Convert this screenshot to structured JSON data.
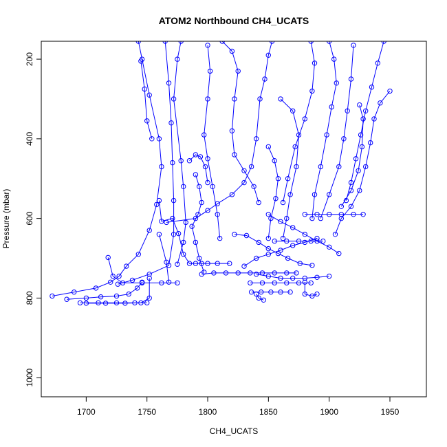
{
  "chart_data": {
    "type": "line",
    "title": "ATOM2 Northbound CH4_UCATS",
    "xlabel": "CH4_UCATS",
    "ylabel": "Pressure (mbar)",
    "xlim": [
      1663,
      1980
    ],
    "ylim": [
      1048,
      155
    ],
    "y_inverted": true,
    "x_ticks": [
      1700,
      1750,
      1800,
      1850,
      1900,
      1950
    ],
    "y_ticks": [
      200,
      400,
      600,
      800,
      1000
    ],
    "grid": false,
    "marker": "open-circle",
    "line_color": "#0000ff",
    "series": [
      {
        "points": [
          [
            1672,
            795
          ],
          [
            1690,
            785
          ],
          [
            1708,
            775
          ],
          [
            1720,
            760
          ],
          [
            1727,
            745
          ],
          [
            1733,
            720
          ],
          [
            1743,
            690
          ],
          [
            1752,
            630
          ],
          [
            1758,
            565
          ],
          [
            1762,
            470
          ],
          [
            1760,
            400
          ],
          [
            1752,
            290
          ],
          [
            1746,
            200
          ],
          [
            1743,
            155
          ]
        ]
      },
      {
        "points": [
          [
            1700,
            813
          ],
          [
            1716,
            813
          ],
          [
            1732,
            813
          ],
          [
            1745,
            812
          ],
          [
            1752,
            800
          ],
          [
            1752,
            750
          ]
        ]
      },
      {
        "points": [
          [
            1684,
            803
          ],
          [
            1700,
            800
          ],
          [
            1712,
            797
          ],
          [
            1725,
            795
          ],
          [
            1735,
            790
          ],
          [
            1742,
            775
          ],
          [
            1746,
            760
          ]
        ]
      },
      {
        "points": [
          [
            1695,
            812
          ],
          [
            1710,
            812
          ],
          [
            1725,
            812
          ],
          [
            1740,
            812
          ],
          [
            1750,
            812
          ]
        ]
      },
      {
        "points": [
          [
            1718,
            698
          ],
          [
            1722,
            745
          ],
          [
            1730,
            762
          ],
          [
            1746,
            762
          ],
          [
            1762,
            762
          ],
          [
            1775,
            762
          ]
        ]
      },
      {
        "points": [
          [
            1745,
            205
          ],
          [
            1748,
            275
          ],
          [
            1750,
            355
          ],
          [
            1754,
            400
          ]
        ]
      },
      {
        "points": [
          [
            1726,
            765
          ],
          [
            1738,
            755
          ],
          [
            1752,
            740
          ],
          [
            1768,
            718
          ],
          [
            1772,
            640
          ],
          [
            1772,
            555
          ],
          [
            1771,
            460
          ],
          [
            1770,
            360
          ],
          [
            1768,
            260
          ],
          [
            1765,
            155
          ]
        ]
      },
      {
        "points": [
          [
            1760,
            555
          ],
          [
            1762,
            607
          ],
          [
            1771,
            600
          ],
          [
            1776,
            638
          ],
          [
            1780,
            690
          ],
          [
            1785,
            713
          ],
          [
            1790,
            713
          ],
          [
            1795,
            713
          ],
          [
            1800,
            713
          ],
          [
            1808,
            713
          ],
          [
            1818,
            713
          ]
        ]
      },
      {
        "points": [
          [
            1775,
            715
          ],
          [
            1780,
            660
          ],
          [
            1782,
            610
          ],
          [
            1780,
            520
          ],
          [
            1778,
            455
          ],
          [
            1772,
            300
          ],
          [
            1775,
            200
          ],
          [
            1778,
            155
          ]
        ]
      },
      {
        "points": [
          [
            1766,
            610
          ],
          [
            1790,
            600
          ],
          [
            1800,
            580
          ],
          [
            1808,
            563
          ],
          [
            1820,
            540
          ],
          [
            1830,
            510
          ],
          [
            1836,
            470
          ],
          [
            1840,
            400
          ],
          [
            1843,
            300
          ],
          [
            1847,
            250
          ],
          [
            1850,
            190
          ],
          [
            1853,
            155
          ]
        ]
      },
      {
        "points": [
          [
            1790,
            490
          ],
          [
            1793,
            520
          ],
          [
            1795,
            560
          ],
          [
            1792,
            590
          ],
          [
            1787,
            620
          ],
          [
            1790,
            660
          ],
          [
            1793,
            700
          ],
          [
            1797,
            735
          ]
        ]
      },
      {
        "points": [
          [
            1795,
            740
          ],
          [
            1805,
            737
          ],
          [
            1815,
            737
          ],
          [
            1825,
            737
          ],
          [
            1835,
            737
          ],
          [
            1845,
            737
          ],
          [
            1855,
            737
          ],
          [
            1865,
            737
          ],
          [
            1873,
            737
          ]
        ]
      },
      {
        "points": [
          [
            1800,
            165
          ],
          [
            1802,
            230
          ],
          [
            1800,
            300
          ],
          [
            1797,
            390
          ],
          [
            1800,
            450
          ],
          [
            1804,
            520
          ],
          [
            1808,
            590
          ],
          [
            1810,
            650
          ]
        ]
      },
      {
        "points": [
          [
            1812,
            155
          ],
          [
            1820,
            180
          ],
          [
            1825,
            230
          ],
          [
            1822,
            300
          ],
          [
            1820,
            380
          ],
          [
            1822,
            440
          ],
          [
            1830,
            480
          ],
          [
            1838,
            520
          ],
          [
            1842,
            560
          ]
        ]
      },
      {
        "points": [
          [
            1822,
            640
          ],
          [
            1832,
            643
          ],
          [
            1842,
            660
          ],
          [
            1850,
            676
          ],
          [
            1858,
            688
          ],
          [
            1866,
            700
          ],
          [
            1876,
            713
          ],
          [
            1886,
            718
          ]
        ]
      },
      {
        "points": [
          [
            1840,
            740
          ],
          [
            1850,
            745
          ],
          [
            1860,
            750
          ],
          [
            1870,
            750
          ],
          [
            1880,
            750
          ],
          [
            1890,
            748
          ],
          [
            1900,
            745
          ]
        ]
      },
      {
        "points": [
          [
            1835,
            762
          ],
          [
            1845,
            762
          ],
          [
            1855,
            762
          ],
          [
            1865,
            762
          ],
          [
            1875,
            762
          ],
          [
            1885,
            762
          ]
        ]
      },
      {
        "points": [
          [
            1836,
            785
          ],
          [
            1844,
            785
          ],
          [
            1852,
            785
          ],
          [
            1860,
            785
          ],
          [
            1868,
            785
          ]
        ]
      },
      {
        "points": [
          [
            1840,
            790
          ],
          [
            1842,
            800
          ],
          [
            1846,
            805
          ]
        ]
      },
      {
        "points": [
          [
            1850,
            590
          ],
          [
            1860,
            608
          ],
          [
            1870,
            623
          ],
          [
            1880,
            640
          ],
          [
            1890,
            657
          ],
          [
            1900,
            672
          ],
          [
            1908,
            688
          ]
        ]
      },
      {
        "points": [
          [
            1855,
            657
          ],
          [
            1865,
            657
          ],
          [
            1875,
            657
          ],
          [
            1885,
            657
          ],
          [
            1895,
            657
          ]
        ]
      },
      {
        "points": [
          [
            1880,
            590
          ],
          [
            1890,
            590
          ],
          [
            1900,
            590
          ],
          [
            1910,
            590
          ],
          [
            1920,
            590
          ],
          [
            1928,
            590
          ]
        ]
      },
      {
        "points": [
          [
            1860,
            300
          ],
          [
            1870,
            330
          ],
          [
            1875,
            390
          ],
          [
            1873,
            470
          ],
          [
            1868,
            540
          ],
          [
            1865,
            600
          ],
          [
            1862,
            650
          ]
        ]
      },
      {
        "points": [
          [
            1885,
            155
          ],
          [
            1888,
            210
          ],
          [
            1886,
            280
          ],
          [
            1880,
            350
          ],
          [
            1872,
            420
          ],
          [
            1866,
            500
          ],
          [
            1862,
            560
          ]
        ]
      },
      {
        "points": [
          [
            1900,
            155
          ],
          [
            1904,
            200
          ],
          [
            1906,
            260
          ],
          [
            1902,
            320
          ],
          [
            1898,
            390
          ],
          [
            1893,
            470
          ],
          [
            1888,
            540
          ],
          [
            1886,
            600
          ]
        ]
      },
      {
        "points": [
          [
            1920,
            165
          ],
          [
            1918,
            250
          ],
          [
            1915,
            330
          ],
          [
            1912,
            400
          ],
          [
            1908,
            470
          ],
          [
            1900,
            540
          ],
          [
            1893,
            600
          ]
        ]
      },
      {
        "points": [
          [
            1950,
            280
          ],
          [
            1942,
            310
          ],
          [
            1937,
            350
          ],
          [
            1934,
            410
          ],
          [
            1930,
            470
          ],
          [
            1925,
            530
          ],
          [
            1918,
            570
          ],
          [
            1910,
            600
          ],
          [
            1905,
            640
          ]
        ]
      },
      {
        "points": [
          [
            1945,
            155
          ],
          [
            1940,
            210
          ],
          [
            1935,
            270
          ],
          [
            1930,
            330
          ],
          [
            1926,
            390
          ],
          [
            1922,
            450
          ],
          [
            1918,
            510
          ],
          [
            1914,
            555
          ]
        ]
      },
      {
        "points": [
          [
            1925,
            315
          ],
          [
            1928,
            350
          ],
          [
            1927,
            420
          ],
          [
            1924,
            480
          ],
          [
            1918,
            530
          ],
          [
            1910,
            570
          ]
        ]
      },
      {
        "points": [
          [
            1850,
            420
          ],
          [
            1855,
            455
          ],
          [
            1858,
            500
          ],
          [
            1856,
            550
          ],
          [
            1852,
            600
          ],
          [
            1850,
            650
          ]
        ]
      },
      {
        "points": [
          [
            1830,
            720
          ],
          [
            1840,
            700
          ],
          [
            1850,
            690
          ],
          [
            1860,
            680
          ],
          [
            1870,
            668
          ],
          [
            1880,
            660
          ],
          [
            1890,
            650
          ]
        ]
      },
      {
        "points": [
          [
            1880,
            760
          ],
          [
            1880,
            790
          ],
          [
            1886,
            795
          ],
          [
            1890,
            790
          ]
        ]
      },
      {
        "points": [
          [
            1760,
            640
          ],
          [
            1766,
            710
          ],
          [
            1768,
            760
          ]
        ]
      },
      {
        "points": [
          [
            1785,
            455
          ],
          [
            1790,
            440
          ],
          [
            1794,
            445
          ],
          [
            1798,
            470
          ],
          [
            1800,
            510
          ]
        ]
      }
    ]
  }
}
